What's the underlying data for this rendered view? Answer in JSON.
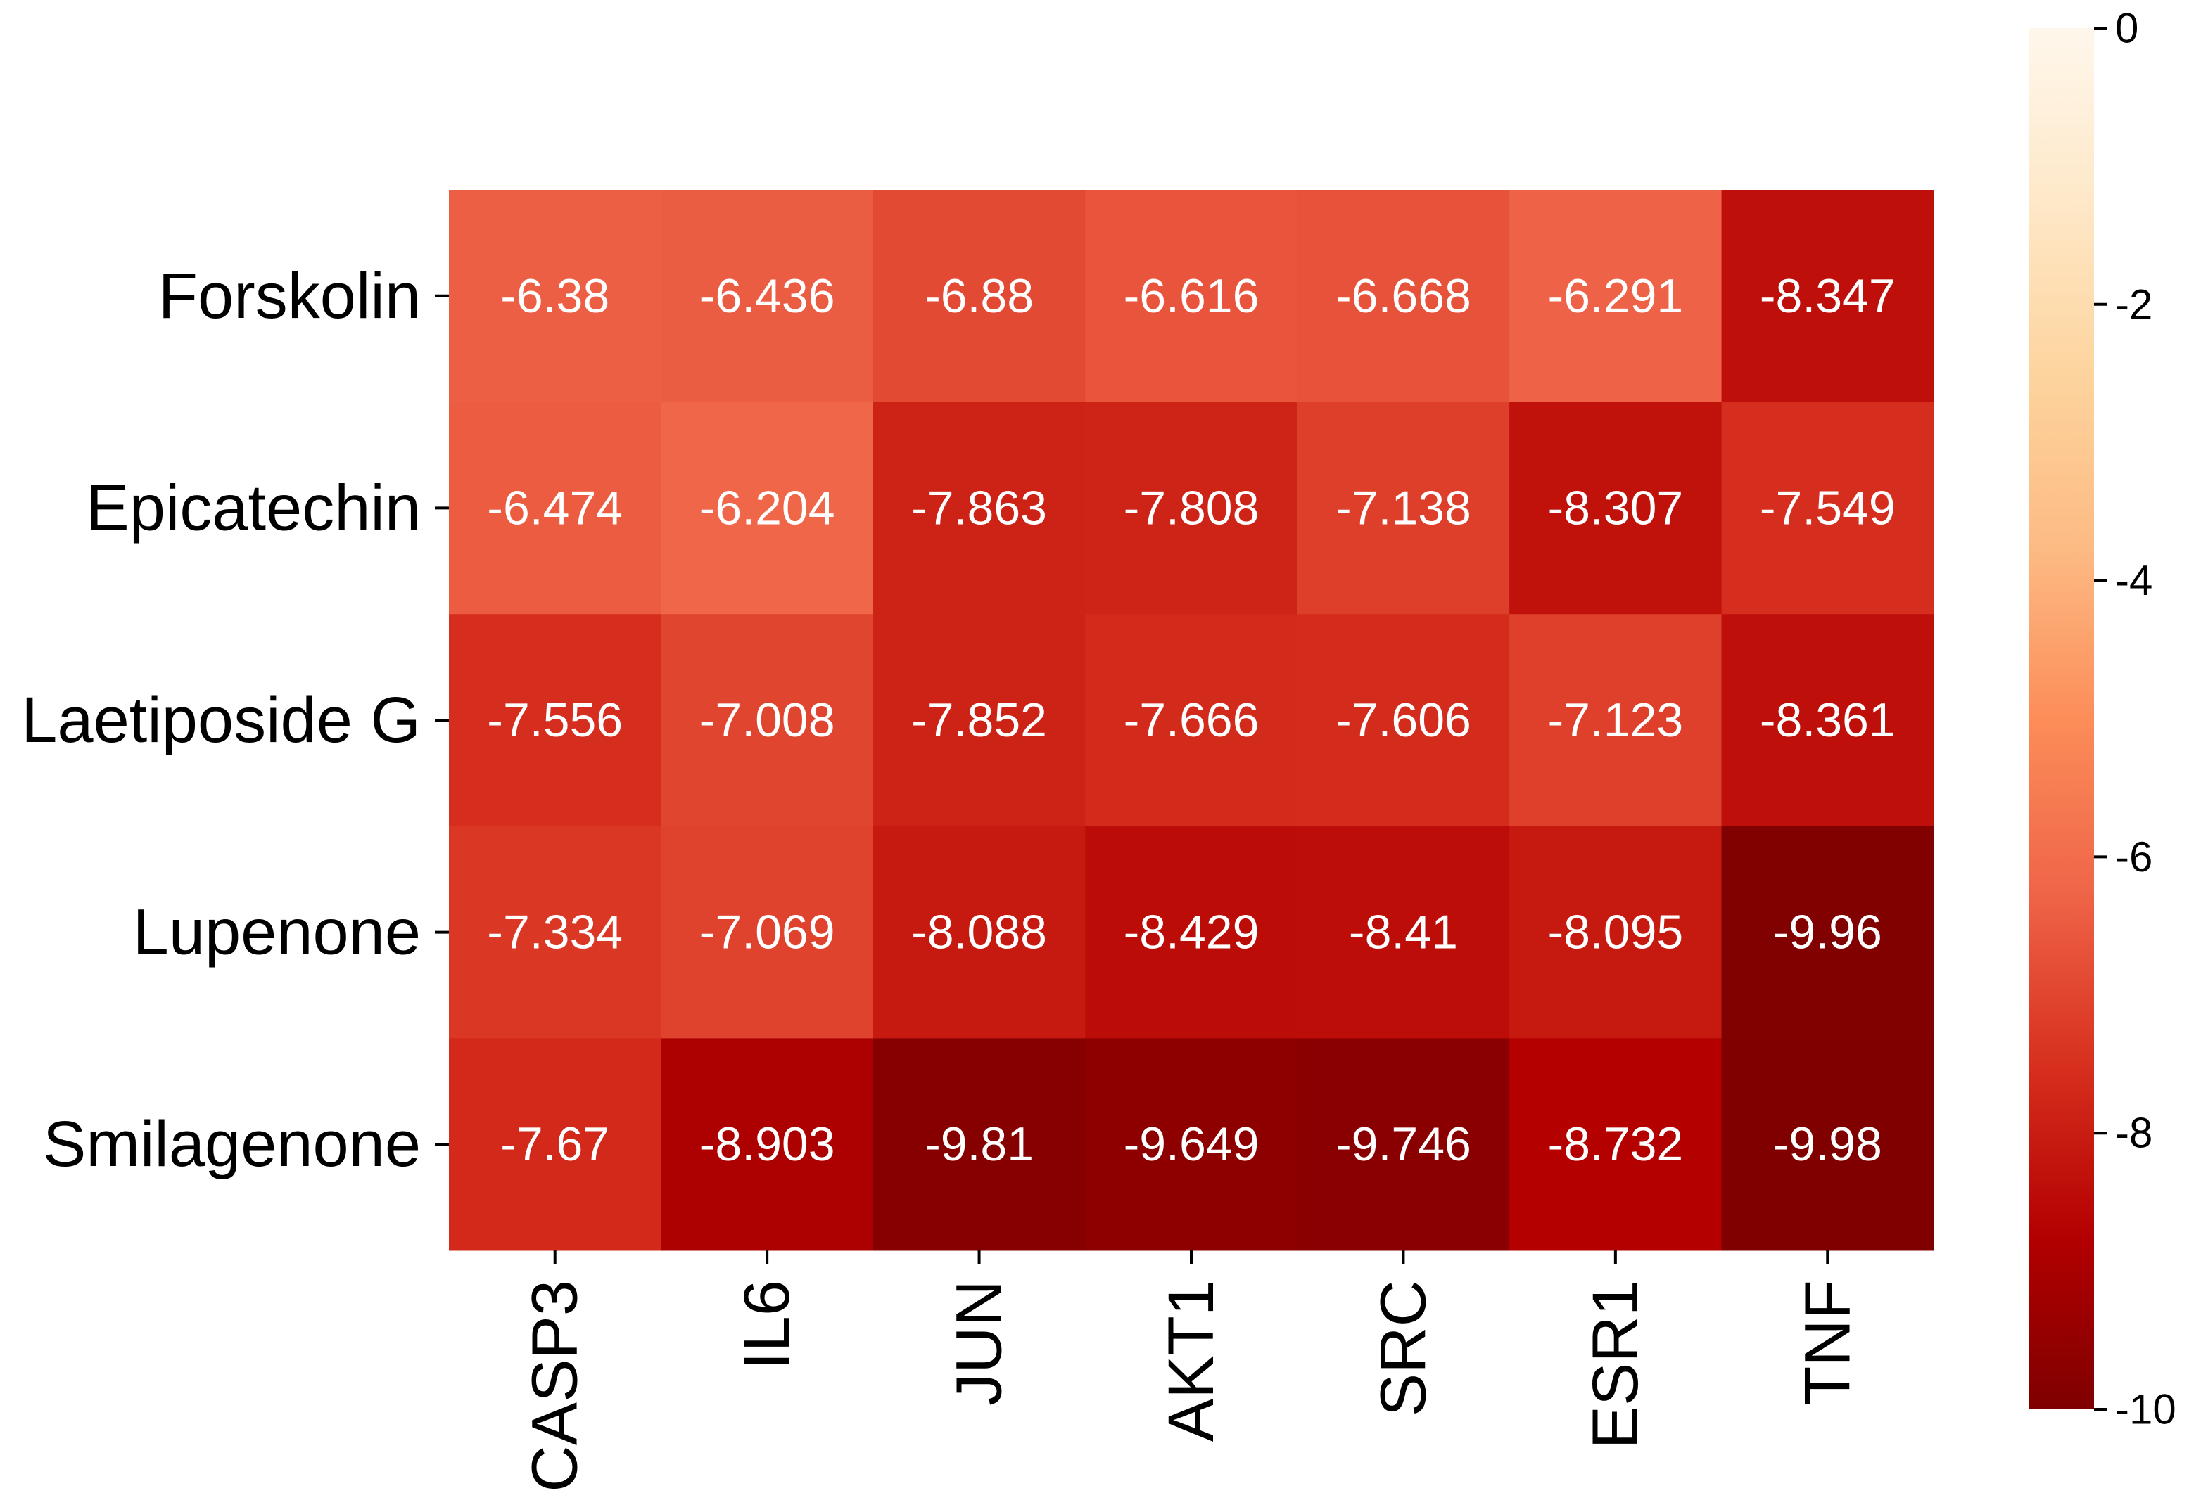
{
  "chart_data": {
    "type": "heatmap",
    "title": "",
    "xlabel": "",
    "ylabel": "",
    "rows": [
      "Forskolin",
      "Epicatechin",
      "Laetiposide G",
      "Lupenone",
      "Smilagenone"
    ],
    "columns": [
      "CASP3",
      "IL6",
      "JUN",
      "AKT1",
      "SRC",
      "ESR1",
      "TNF"
    ],
    "values": [
      [
        -6.38,
        -6.436,
        -6.88,
        -6.616,
        -6.668,
        -6.291,
        -8.347
      ],
      [
        -6.474,
        -6.204,
        -7.863,
        -7.808,
        -7.138,
        -8.307,
        -7.549
      ],
      [
        -7.556,
        -7.008,
        -7.852,
        -7.666,
        -7.606,
        -7.123,
        -8.361
      ],
      [
        -7.334,
        -7.069,
        -8.088,
        -8.429,
        -8.41,
        -8.095,
        -9.96
      ],
      [
        -7.67,
        -8.903,
        -9.81,
        -9.649,
        -9.746,
        -8.732,
        -9.98
      ]
    ],
    "cell_labels": [
      [
        "-6.38",
        "-6.436",
        "-6.88",
        "-6.616",
        "-6.668",
        "-6.291",
        "-8.347"
      ],
      [
        "-6.474",
        "-6.204",
        "-7.863",
        "-7.808",
        "-7.138",
        "-8.307",
        "-7.549"
      ],
      [
        "-7.556",
        "-7.008",
        "-7.852",
        "-7.666",
        "-7.606",
        "-7.123",
        "-8.361"
      ],
      [
        "-7.334",
        "-7.069",
        "-8.088",
        "-8.429",
        "-8.41",
        "-8.095",
        "-9.96"
      ],
      [
        "-7.67",
        "-8.903",
        "-9.81",
        "-9.649",
        "-9.746",
        "-8.732",
        "-9.98"
      ]
    ],
    "colorbar": {
      "range": [
        -10,
        0
      ],
      "ticks": [
        0,
        -2,
        -4,
        -6,
        -8,
        -10
      ],
      "tick_labels": [
        "0",
        "-2",
        "-4",
        "-6",
        "-8",
        "-10"
      ],
      "colormap": "OrRd (reversed)",
      "stops": [
        "#7f0000",
        "#b30000",
        "#d7301f",
        "#ef6548",
        "#fc8d59",
        "#fdbb84",
        "#fdd49e",
        "#fee8c8",
        "#fff7ec"
      ]
    }
  }
}
